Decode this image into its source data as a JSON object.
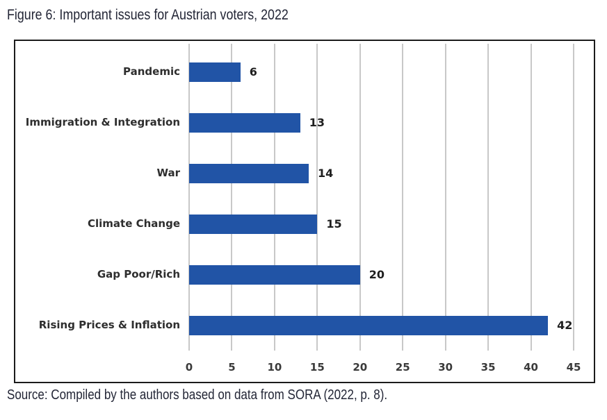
{
  "page": {
    "title": "Figure 6: Important issues for Austrian voters, 2022",
    "source_note": "Source: Compiled by the authors based on data from SORA (2022, p. 8)."
  },
  "chart_data": {
    "type": "bar",
    "orientation": "horizontal",
    "title": "Figure 6: Important issues for Austrian voters, 2022",
    "categories": [
      "Pandemic",
      "Immigration & Integration",
      "War",
      "Climate Change",
      "Gap Poor/Rich",
      "Rising Prices & Inflation"
    ],
    "values": [
      6,
      13,
      14,
      15,
      20,
      42
    ],
    "xlabel": "",
    "ylabel": "",
    "xlim": [
      0,
      45
    ],
    "xticks": [
      0,
      5,
      10,
      15,
      20,
      25,
      30,
      35,
      40,
      45
    ],
    "grid": "vertical",
    "legend": "none",
    "show_data_labels": true
  },
  "colors": {
    "bar": "#2154A6",
    "gridline": "#c8c8c8",
    "chart_border": "#1b1b1b",
    "label_text": "#2e2e2e",
    "title_text": "#232636"
  }
}
